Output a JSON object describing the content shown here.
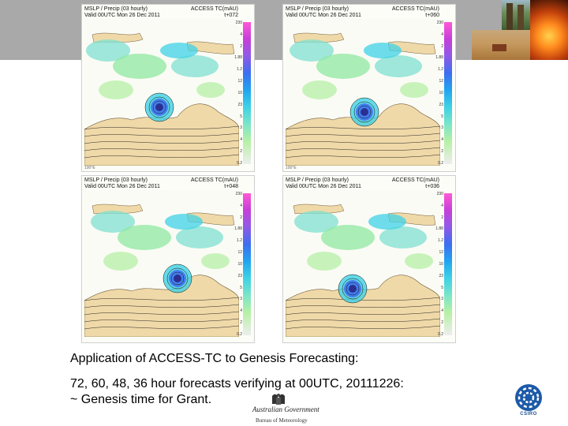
{
  "maps": [
    {
      "header_line1": "MSLP / Precip (03 hourly)",
      "header_line2": "Valid 00UTC Mon 26 Dec 2011",
      "model": "ACCESS TC(mAU)",
      "lead": "t+072",
      "scale": [
        "230",
        "4",
        "2",
        "1.88",
        "1.2",
        "12",
        "10",
        "23",
        "5",
        "3",
        "4",
        "2",
        "0.2"
      ],
      "footer": "100°E"
    },
    {
      "header_line1": "MSLP / Precip (03 hourly)",
      "header_line2": "Valid 00UTC Mon 26 Dec 2011",
      "model": "ACCESS TC(mAU)",
      "lead": "t+060",
      "scale": [
        "230",
        "4",
        "2",
        "1.88",
        "1.2",
        "12",
        "10",
        "23",
        "5",
        "3",
        "4",
        "2",
        "0.2"
      ],
      "footer": "100°E"
    },
    {
      "header_line1": "MSLP / Precip (03 hourly)",
      "header_line2": "Valid 00UTC Mon 26 Dec 2011",
      "model": "ACCESS TC(mAU)",
      "lead": "t+048",
      "scale": [
        "230",
        "4",
        "2",
        "1.88",
        "1.2",
        "12",
        "10",
        "23",
        "5",
        "3",
        "4",
        "2",
        "0.2"
      ],
      "footer": ""
    },
    {
      "header_line1": "MSLP / Precip (03 hourly)",
      "header_line2": "Valid 00UTC Mon 26 Dec 2011",
      "model": "ACCESS TC(mAU)",
      "lead": "t+036",
      "scale": [
        "230",
        "4",
        "2",
        "1.88",
        "1.2",
        "12",
        "10",
        "23",
        "5",
        "3",
        "4",
        "2",
        "0.2"
      ],
      "footer": ""
    }
  ],
  "caption": {
    "title": "Application of ACCESS-TC to Genesis Forecasting:",
    "line1": "72, 60, 48, 36 hour forecasts verifying at 00UTC, 20111226:",
    "line2": "~ Genesis time for Grant."
  },
  "logos": {
    "gov": "Australian Government",
    "bom": "Bureau of Meteorology",
    "csiro": "CSIRO"
  }
}
